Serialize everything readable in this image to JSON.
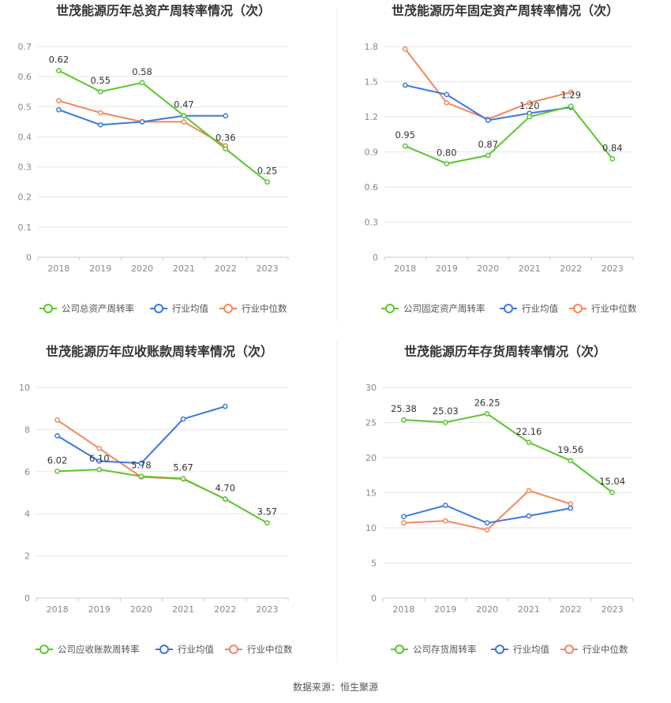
{
  "source": "数据来源：恒生聚源",
  "colors": {
    "company": "#5ac52e",
    "avg": "#3b78e0",
    "median": "#f2875c"
  },
  "legend_avg": "行业均值",
  "legend_median": "行业中位数",
  "chart_data": [
    {
      "type": "line",
      "title": "世茂能源历年总资产周转率情况（次）",
      "x": [
        "2018",
        "2019",
        "2020",
        "2021",
        "2022",
        "2023"
      ],
      "ylim": [
        0,
        0.7
      ],
      "yticks": [
        "0",
        "0.1",
        "0.2",
        "0.3",
        "0.4",
        "0.5",
        "0.6",
        "0.7"
      ],
      "series": [
        {
          "name": "公司总资产周转率",
          "key": "company",
          "values": [
            0.62,
            0.55,
            0.58,
            0.47,
            0.36,
            0.25
          ],
          "labels": [
            "0.62",
            "0.55",
            "0.58",
            "0.47",
            "0.36",
            "0.25"
          ]
        },
        {
          "name": "行业均值",
          "key": "avg",
          "values": [
            0.49,
            0.44,
            0.45,
            0.47,
            0.47,
            null
          ]
        },
        {
          "name": "行业中位数",
          "key": "median",
          "values": [
            0.52,
            0.48,
            0.45,
            0.45,
            0.37,
            null
          ]
        }
      ]
    },
    {
      "type": "line",
      "title": "世茂能源历年固定资产周转率情况（次）",
      "x": [
        "2018",
        "2019",
        "2020",
        "2021",
        "2022",
        "2023"
      ],
      "ylim": [
        0,
        1.8
      ],
      "yticks": [
        "0",
        "0.3",
        "0.6",
        "0.9",
        "1.2",
        "1.5",
        "1.8"
      ],
      "series": [
        {
          "name": "公司固定资产周转率",
          "key": "company",
          "values": [
            0.95,
            0.8,
            0.87,
            1.2,
            1.29,
            0.84
          ],
          "labels": [
            "0.95",
            "0.80",
            "0.87",
            "1.20",
            "1.29",
            "0.84"
          ]
        },
        {
          "name": "行业均值",
          "key": "avg",
          "values": [
            1.47,
            1.39,
            1.17,
            1.23,
            1.28,
            null
          ]
        },
        {
          "name": "行业中位数",
          "key": "median",
          "values": [
            1.78,
            1.32,
            1.18,
            1.32,
            1.41,
            null
          ]
        }
      ]
    },
    {
      "type": "line",
      "title": "世茂能源历年应收账款周转率情况（次）",
      "x": [
        "2018",
        "2019",
        "2020",
        "2021",
        "2022",
        "2023"
      ],
      "ylim": [
        0,
        10
      ],
      "yticks": [
        "0",
        "2",
        "4",
        "6",
        "8",
        "10"
      ],
      "series": [
        {
          "name": "公司应收账款周转率",
          "key": "company",
          "values": [
            6.02,
            6.1,
            5.78,
            5.67,
            4.7,
            3.57
          ],
          "labels": [
            "6.02",
            "6.10",
            "5.78",
            "5.67",
            "4.70",
            "3.57"
          ]
        },
        {
          "name": "行业均值",
          "key": "avg",
          "values": [
            7.7,
            6.5,
            6.4,
            8.5,
            9.1,
            null
          ]
        },
        {
          "name": "行业中位数",
          "key": "median",
          "values": [
            8.45,
            7.1,
            5.75,
            5.65,
            4.7,
            null
          ]
        }
      ]
    },
    {
      "type": "line",
      "title": "世茂能源历年存货周转率情况（次）",
      "x": [
        "2018",
        "2019",
        "2020",
        "2021",
        "2022",
        "2023"
      ],
      "ylim": [
        0,
        30
      ],
      "yticks": [
        "0",
        "5",
        "10",
        "15",
        "20",
        "25",
        "30"
      ],
      "series": [
        {
          "name": "公司存货周转率",
          "key": "company",
          "values": [
            25.38,
            25.03,
            26.25,
            22.16,
            19.56,
            15.04
          ],
          "labels": [
            "25.38",
            "25.03",
            "26.25",
            "22.16",
            "19.56",
            "15.04"
          ]
        },
        {
          "name": "行业均值",
          "key": "avg",
          "values": [
            11.6,
            13.2,
            10.7,
            11.7,
            12.8,
            null
          ]
        },
        {
          "name": "行业中位数",
          "key": "median",
          "values": [
            10.7,
            11.0,
            9.7,
            15.3,
            13.4,
            null
          ]
        }
      ]
    }
  ]
}
